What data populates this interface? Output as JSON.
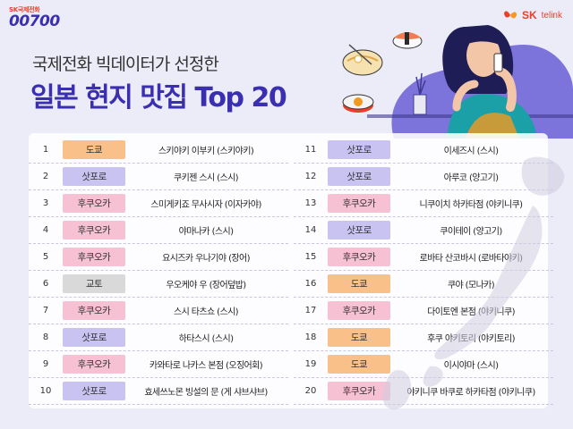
{
  "brand": {
    "sub": "SK국제전화",
    "main": "00700"
  },
  "logo": {
    "sk": "SK",
    "telink": "telink",
    "colors": {
      "red": "#e8402a",
      "orange": "#f39a1e"
    }
  },
  "headline": {
    "sub": "국제전화 빅데이터가 선정한",
    "main": "일본 현지 맛집 Top 20"
  },
  "region_colors": {
    "도쿄": "#f9c089",
    "삿포로": "#c9c3f2",
    "후쿠오카": "#f6c2d3",
    "교토": "#d9d9d9"
  },
  "rankings": [
    {
      "rank": "1",
      "region": "도쿄",
      "name": "스키야키 이부키 (스키야키)"
    },
    {
      "rank": "2",
      "region": "삿포로",
      "name": "쿠키젠 스시 (스시)"
    },
    {
      "rank": "3",
      "region": "후쿠오카",
      "name": "스미게키죠 무사시자 (이자카야)"
    },
    {
      "rank": "4",
      "region": "후쿠오카",
      "name": "야마나카 (스시)"
    },
    {
      "rank": "5",
      "region": "후쿠오카",
      "name": "요시즈카 우나기야 (장어)"
    },
    {
      "rank": "6",
      "region": "교토",
      "name": "우오케야 우 (장어덮밥)"
    },
    {
      "rank": "7",
      "region": "후쿠오카",
      "name": "스시 타츠쇼 (스시)"
    },
    {
      "rank": "8",
      "region": "삿포로",
      "name": "하타스시 (스시)"
    },
    {
      "rank": "9",
      "region": "후쿠오카",
      "name": "카와타로 나카스 본점 (오징어회)"
    },
    {
      "rank": "10",
      "region": "삿포로",
      "name": "효세쓰노몬 빙설의 문 (게 샤브샤브)"
    },
    {
      "rank": "11",
      "region": "삿포로",
      "name": "이세즈시 (스시)"
    },
    {
      "rank": "12",
      "region": "삿포로",
      "name": "아루코 (양고기)"
    },
    {
      "rank": "13",
      "region": "후쿠오카",
      "name": "니쿠이치 하카타점 (야키니쿠)"
    },
    {
      "rank": "14",
      "region": "삿포로",
      "name": "쿠이테이 (양고기)"
    },
    {
      "rank": "15",
      "region": "후쿠오카",
      "name": "로바타 산코바시 (로바타야키)"
    },
    {
      "rank": "16",
      "region": "도쿄",
      "name": "쿠야 (모나카)"
    },
    {
      "rank": "17",
      "region": "후쿠오카",
      "name": "다이토엔 본점 (야키니쿠)"
    },
    {
      "rank": "18",
      "region": "도쿄",
      "name": "후쿠 야키토리 (야키토리)"
    },
    {
      "rank": "19",
      "region": "도쿄",
      "name": "이시야마 (스시)"
    },
    {
      "rank": "20",
      "region": "후쿠오카",
      "name": "야키니쿠 바쿠로 하카타점 (야키니쿠)"
    }
  ],
  "icons": [
    "sushi-icon",
    "ramen-bowl-icon",
    "sushi-roll-icon",
    "phone-icon",
    "plant-icon",
    "japan-map-icon"
  ]
}
